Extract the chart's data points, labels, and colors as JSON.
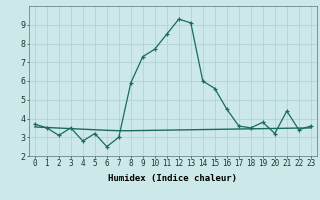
{
  "xlabel": "Humidex (Indice chaleur)",
  "x_values": [
    0,
    1,
    2,
    3,
    4,
    5,
    6,
    7,
    8,
    9,
    10,
    11,
    12,
    13,
    14,
    15,
    16,
    17,
    18,
    19,
    20,
    21,
    22,
    23
  ],
  "y_curve": [
    3.7,
    3.5,
    3.1,
    3.5,
    2.8,
    3.2,
    2.5,
    3.0,
    5.9,
    7.3,
    7.7,
    8.5,
    9.3,
    9.1,
    6.0,
    5.6,
    4.5,
    3.6,
    3.5,
    3.8,
    3.2,
    4.4,
    3.4,
    3.6
  ],
  "y_trend": [
    3.55,
    3.52,
    3.49,
    3.46,
    3.43,
    3.4,
    3.37,
    3.35,
    3.35,
    3.36,
    3.37,
    3.38,
    3.39,
    3.4,
    3.41,
    3.42,
    3.43,
    3.44,
    3.45,
    3.46,
    3.47,
    3.48,
    3.49,
    3.5
  ],
  "line_color": "#1a6b5e",
  "bg_color": "#cce8e8",
  "grid_color": "#aed0d0",
  "ylim": [
    2,
    10
  ],
  "xlim": [
    -0.5,
    23.5
  ],
  "yticks": [
    2,
    3,
    4,
    5,
    6,
    7,
    8,
    9
  ],
  "xticks": [
    0,
    1,
    2,
    3,
    4,
    5,
    6,
    7,
    8,
    9,
    10,
    11,
    12,
    13,
    14,
    15,
    16,
    17,
    18,
    19,
    20,
    21,
    22,
    23
  ],
  "xtick_labels": [
    "0",
    "1",
    "2",
    "3",
    "4",
    "5",
    "6",
    "7",
    "8",
    "9",
    "10",
    "11",
    "12",
    "13",
    "14",
    "15",
    "16",
    "17",
    "18",
    "19",
    "20",
    "21",
    "22",
    "23"
  ],
  "xlabel_fontsize": 6.5,
  "tick_fontsize": 5.5
}
